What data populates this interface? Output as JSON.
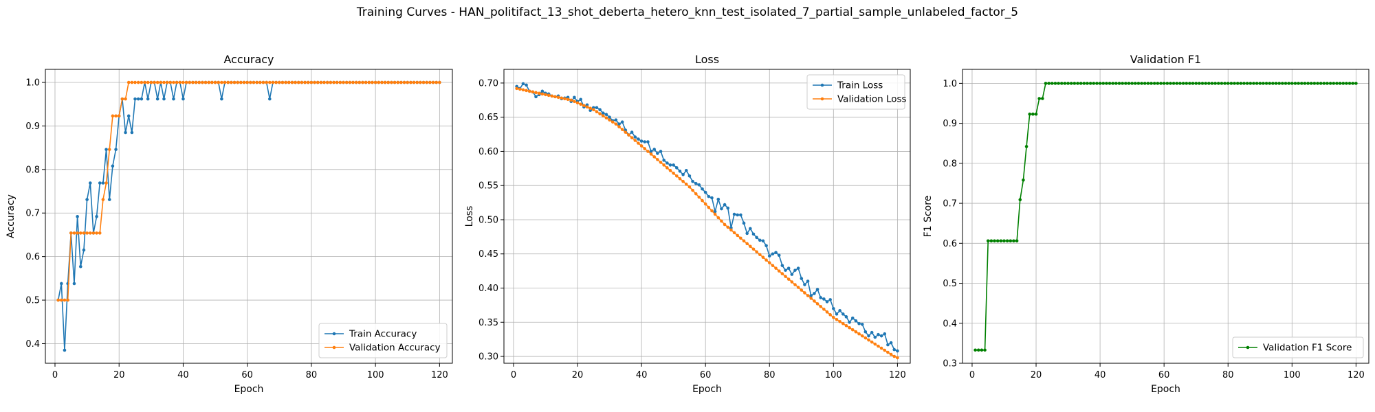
{
  "suptitle": "Training Curves - HAN_politifact_13_shot_deberta_hetero_knn_test_isolated_7_partial_sample_unlabeled_factor_5",
  "colors": {
    "train": "#1f77b4",
    "val": "#ff7f0e",
    "f1": "#008000"
  },
  "chart_data": [
    {
      "type": "line",
      "title": "Accuracy",
      "xlabel": "Epoch",
      "ylabel": "Accuracy",
      "xlim": [
        -3,
        124
      ],
      "ylim": [
        0.355,
        1.03
      ],
      "xticks": [
        0,
        20,
        40,
        60,
        80,
        100,
        120
      ],
      "yticks": [
        0.4,
        0.5,
        0.6,
        0.7,
        0.8,
        0.9,
        1.0
      ],
      "ytick_labels": [
        "0.4",
        "0.5",
        "0.6",
        "0.7",
        "0.8",
        "0.9",
        "1.0"
      ],
      "grid": true,
      "legend_position": "lower-right",
      "x_range": [
        1,
        120
      ],
      "series": [
        {
          "name": "Train Accuracy",
          "color_key": "train",
          "values": [
            0.5,
            0.538,
            0.385,
            0.538,
            0.654,
            0.538,
            0.692,
            0.577,
            0.615,
            0.731,
            0.769,
            0.654,
            0.692,
            0.769,
            0.769,
            0.846,
            0.731,
            0.808,
            0.846,
            0.923,
            0.962,
            0.885,
            0.923,
            0.885,
            0.962,
            0.962,
            0.962,
            1.0,
            0.962,
            1.0,
            1.0,
            0.962,
            1.0,
            0.962,
            1.0,
            1.0,
            0.962,
            1.0,
            1.0,
            0.962,
            1.0,
            1.0,
            1.0,
            1.0,
            1.0,
            1.0,
            1.0,
            1.0,
            1.0,
            1.0,
            1.0,
            0.962,
            1.0,
            1.0,
            1.0,
            1.0,
            1.0,
            1.0,
            1.0,
            1.0,
            1.0,
            1.0,
            1.0,
            1.0,
            1.0,
            1.0,
            0.962,
            1.0,
            1.0,
            1.0,
            1.0,
            1.0,
            1.0,
            1.0,
            1.0,
            1.0,
            1.0,
            1.0,
            1.0,
            1.0,
            1.0,
            1.0,
            1.0,
            1.0,
            1.0,
            1.0,
            1.0,
            1.0,
            1.0,
            1.0,
            1.0,
            1.0,
            1.0,
            1.0,
            1.0,
            1.0,
            1.0,
            1.0,
            1.0,
            1.0,
            1.0,
            1.0,
            1.0,
            1.0,
            1.0,
            1.0,
            1.0,
            1.0,
            1.0,
            1.0,
            1.0,
            1.0,
            1.0,
            1.0,
            1.0,
            1.0,
            1.0,
            1.0,
            1.0,
            1.0
          ]
        },
        {
          "name": "Validation Accuracy",
          "color_key": "val",
          "values": [
            0.5,
            0.5,
            0.5,
            0.5,
            0.654,
            0.654,
            0.654,
            0.654,
            0.654,
            0.654,
            0.654,
            0.654,
            0.654,
            0.654,
            0.731,
            0.769,
            0.846,
            0.923,
            0.923,
            0.923,
            0.962,
            0.962,
            1.0,
            1.0,
            1.0,
            1.0,
            1.0,
            1.0,
            1.0,
            1.0,
            1.0,
            1.0,
            1.0,
            1.0,
            1.0,
            1.0,
            1.0,
            1.0,
            1.0,
            1.0,
            1.0,
            1.0,
            1.0,
            1.0,
            1.0,
            1.0,
            1.0,
            1.0,
            1.0,
            1.0,
            1.0,
            1.0,
            1.0,
            1.0,
            1.0,
            1.0,
            1.0,
            1.0,
            1.0,
            1.0,
            1.0,
            1.0,
            1.0,
            1.0,
            1.0,
            1.0,
            1.0,
            1.0,
            1.0,
            1.0,
            1.0,
            1.0,
            1.0,
            1.0,
            1.0,
            1.0,
            1.0,
            1.0,
            1.0,
            1.0,
            1.0,
            1.0,
            1.0,
            1.0,
            1.0,
            1.0,
            1.0,
            1.0,
            1.0,
            1.0,
            1.0,
            1.0,
            1.0,
            1.0,
            1.0,
            1.0,
            1.0,
            1.0,
            1.0,
            1.0,
            1.0,
            1.0,
            1.0,
            1.0,
            1.0,
            1.0,
            1.0,
            1.0,
            1.0,
            1.0,
            1.0,
            1.0,
            1.0,
            1.0,
            1.0,
            1.0,
            1.0,
            1.0,
            1.0,
            1.0
          ]
        }
      ]
    },
    {
      "type": "line",
      "title": "Loss",
      "xlabel": "Epoch",
      "ylabel": "Loss",
      "xlim": [
        -3,
        124
      ],
      "ylim": [
        0.29,
        0.72
      ],
      "xticks": [
        0,
        20,
        40,
        60,
        80,
        100,
        120
      ],
      "yticks": [
        0.3,
        0.35,
        0.4,
        0.45,
        0.5,
        0.55,
        0.6,
        0.65,
        0.7
      ],
      "ytick_labels": [
        "0.30",
        "0.35",
        "0.40",
        "0.45",
        "0.50",
        "0.55",
        "0.60",
        "0.65",
        "0.70"
      ],
      "grid": true,
      "legend_position": "upper-right",
      "x_range": [
        1,
        120
      ],
      "series": [
        {
          "name": "Train Loss",
          "color_key": "train",
          "values": [
            0.695,
            0.692,
            0.699,
            0.697,
            0.688,
            0.687,
            0.68,
            0.683,
            0.688,
            0.685,
            0.684,
            0.681,
            0.68,
            0.681,
            0.677,
            0.678,
            0.679,
            0.673,
            0.679,
            0.673,
            0.676,
            0.665,
            0.668,
            0.66,
            0.664,
            0.664,
            0.661,
            0.656,
            0.654,
            0.65,
            0.645,
            0.646,
            0.64,
            0.643,
            0.631,
            0.624,
            0.628,
            0.621,
            0.618,
            0.615,
            0.614,
            0.614,
            0.6,
            0.603,
            0.597,
            0.6,
            0.587,
            0.583,
            0.58,
            0.58,
            0.576,
            0.571,
            0.566,
            0.572,
            0.564,
            0.556,
            0.553,
            0.551,
            0.545,
            0.54,
            0.534,
            0.532,
            0.512,
            0.53,
            0.516,
            0.522,
            0.517,
            0.488,
            0.508,
            0.507,
            0.507,
            0.495,
            0.48,
            0.487,
            0.479,
            0.474,
            0.47,
            0.469,
            0.462,
            0.447,
            0.45,
            0.452,
            0.448,
            0.433,
            0.426,
            0.429,
            0.42,
            0.426,
            0.429,
            0.414,
            0.405,
            0.41,
            0.389,
            0.392,
            0.398,
            0.386,
            0.384,
            0.38,
            0.383,
            0.37,
            0.362,
            0.367,
            0.362,
            0.358,
            0.35,
            0.356,
            0.352,
            0.348,
            0.347,
            0.336,
            0.33,
            0.335,
            0.328,
            0.332,
            0.33,
            0.333,
            0.317,
            0.32,
            0.31,
            0.308
          ]
        },
        {
          "name": "Validation Loss",
          "color_key": "val",
          "values": [
            0.692,
            0.691,
            0.69,
            0.689,
            0.688,
            0.687,
            0.686,
            0.685,
            0.684,
            0.683,
            0.682,
            0.681,
            0.68,
            0.679,
            0.678,
            0.677,
            0.676,
            0.675,
            0.673,
            0.671,
            0.669,
            0.667,
            0.665,
            0.663,
            0.661,
            0.658,
            0.655,
            0.652,
            0.649,
            0.646,
            0.643,
            0.64,
            0.636,
            0.632,
            0.628,
            0.624,
            0.62,
            0.616,
            0.612,
            0.608,
            0.604,
            0.6,
            0.596,
            0.592,
            0.588,
            0.584,
            0.58,
            0.576,
            0.572,
            0.568,
            0.564,
            0.56,
            0.556,
            0.552,
            0.548,
            0.543,
            0.538,
            0.533,
            0.528,
            0.523,
            0.518,
            0.513,
            0.508,
            0.503,
            0.498,
            0.493,
            0.489,
            0.485,
            0.481,
            0.477,
            0.473,
            0.469,
            0.465,
            0.461,
            0.457,
            0.453,
            0.449,
            0.445,
            0.441,
            0.437,
            0.433,
            0.429,
            0.425,
            0.421,
            0.417,
            0.413,
            0.409,
            0.405,
            0.401,
            0.397,
            0.393,
            0.389,
            0.385,
            0.381,
            0.377,
            0.373,
            0.369,
            0.365,
            0.361,
            0.357,
            0.354,
            0.351,
            0.348,
            0.345,
            0.342,
            0.339,
            0.336,
            0.333,
            0.33,
            0.327,
            0.324,
            0.321,
            0.318,
            0.315,
            0.312,
            0.309,
            0.306,
            0.303,
            0.3,
            0.298
          ]
        }
      ]
    },
    {
      "type": "line",
      "title": "Validation F1",
      "xlabel": "Epoch",
      "ylabel": "F1 Score",
      "xlim": [
        -3,
        124
      ],
      "ylim": [
        0.3,
        1.035
      ],
      "xticks": [
        0,
        20,
        40,
        60,
        80,
        100,
        120
      ],
      "yticks": [
        0.3,
        0.4,
        0.5,
        0.6,
        0.7,
        0.8,
        0.9,
        1.0
      ],
      "ytick_labels": [
        "0.3",
        "0.4",
        "0.5",
        "0.6",
        "0.7",
        "0.8",
        "0.9",
        "1.0"
      ],
      "grid": true,
      "legend_position": "lower-right",
      "x_range": [
        1,
        120
      ],
      "series": [
        {
          "name": "Validation F1 Score",
          "color_key": "f1",
          "values": [
            0.333,
            0.333,
            0.333,
            0.333,
            0.606,
            0.606,
            0.606,
            0.606,
            0.606,
            0.606,
            0.606,
            0.606,
            0.606,
            0.606,
            0.709,
            0.758,
            0.842,
            0.923,
            0.923,
            0.923,
            0.962,
            0.962,
            1.0,
            1.0,
            1.0,
            1.0,
            1.0,
            1.0,
            1.0,
            1.0,
            1.0,
            1.0,
            1.0,
            1.0,
            1.0,
            1.0,
            1.0,
            1.0,
            1.0,
            1.0,
            1.0,
            1.0,
            1.0,
            1.0,
            1.0,
            1.0,
            1.0,
            1.0,
            1.0,
            1.0,
            1.0,
            1.0,
            1.0,
            1.0,
            1.0,
            1.0,
            1.0,
            1.0,
            1.0,
            1.0,
            1.0,
            1.0,
            1.0,
            1.0,
            1.0,
            1.0,
            1.0,
            1.0,
            1.0,
            1.0,
            1.0,
            1.0,
            1.0,
            1.0,
            1.0,
            1.0,
            1.0,
            1.0,
            1.0,
            1.0,
            1.0,
            1.0,
            1.0,
            1.0,
            1.0,
            1.0,
            1.0,
            1.0,
            1.0,
            1.0,
            1.0,
            1.0,
            1.0,
            1.0,
            1.0,
            1.0,
            1.0,
            1.0,
            1.0,
            1.0,
            1.0,
            1.0,
            1.0,
            1.0,
            1.0,
            1.0,
            1.0,
            1.0,
            1.0,
            1.0,
            1.0,
            1.0,
            1.0,
            1.0,
            1.0,
            1.0,
            1.0,
            1.0,
            1.0,
            1.0
          ]
        }
      ]
    }
  ]
}
